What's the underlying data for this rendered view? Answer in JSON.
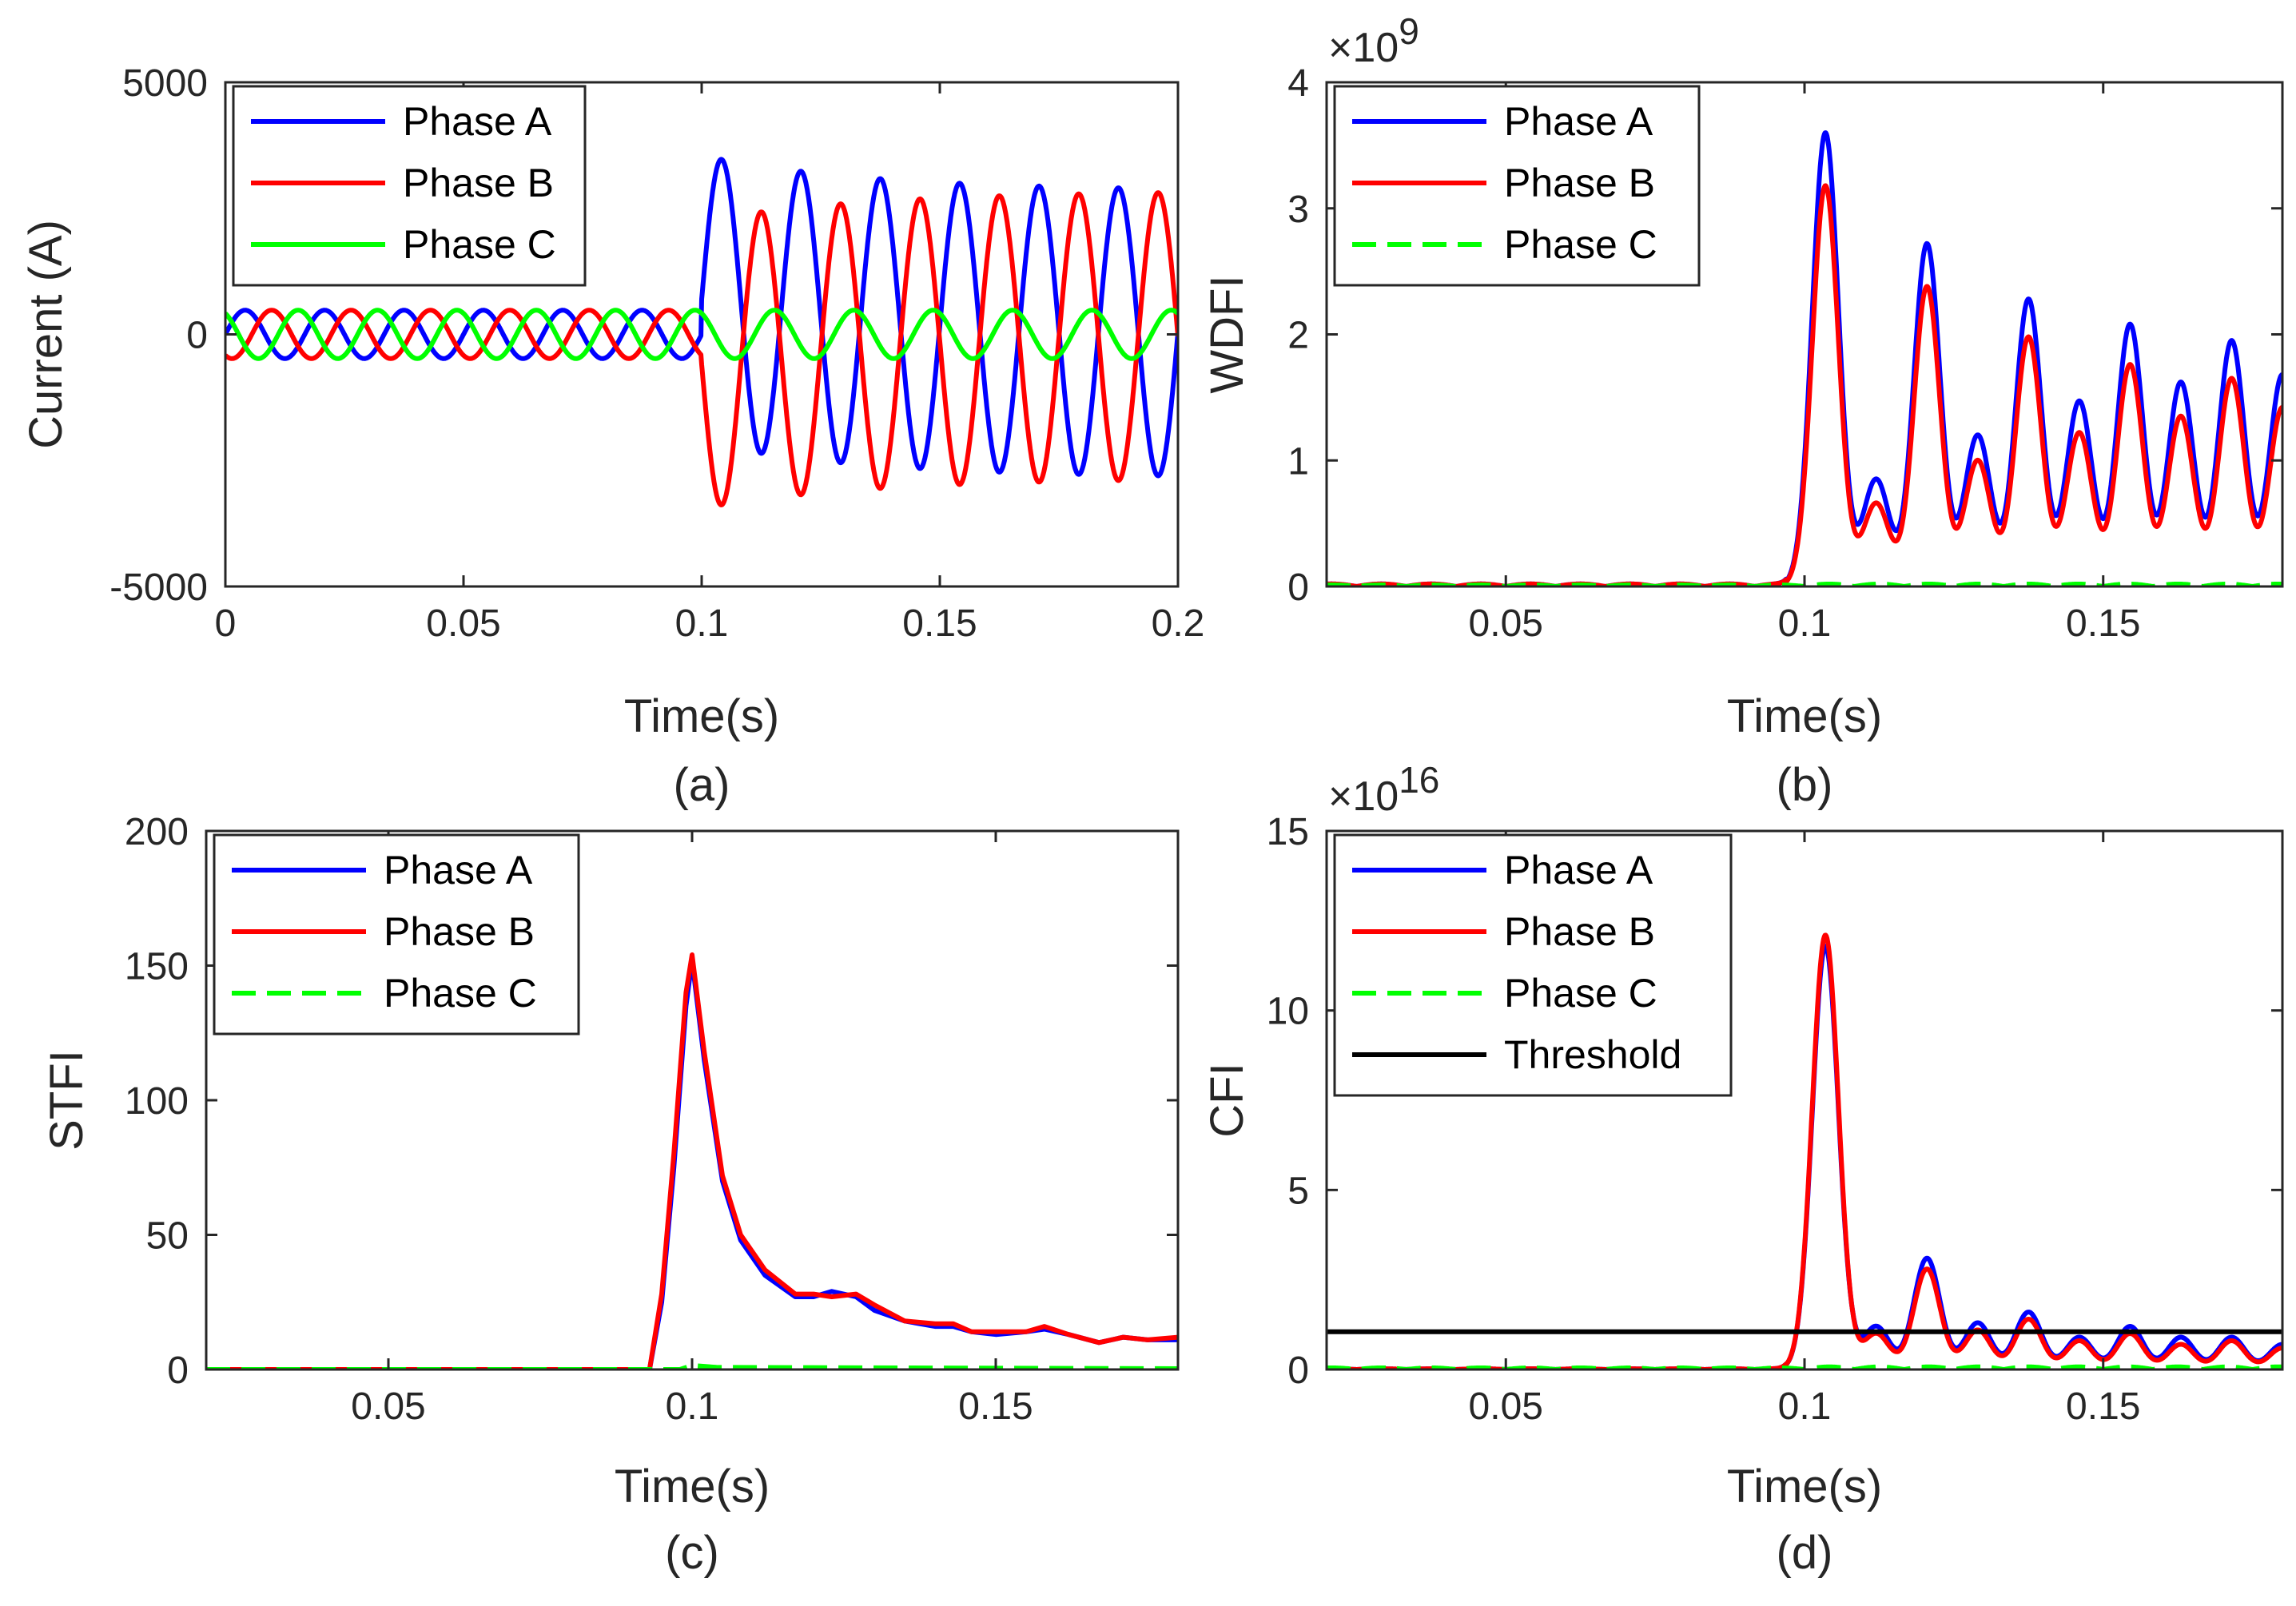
{
  "chart_data": [
    {
      "panel": "(a)",
      "type": "line",
      "caption": "(a)",
      "xlabel": "Time(s)",
      "ylabel": "Current (A)",
      "exponent_label": "",
      "xlim": [
        0,
        0.2
      ],
      "ylim": [
        -5000,
        5000
      ],
      "xticks": [
        0,
        0.05,
        0.1,
        0.15,
        0.2
      ],
      "xtick_labels": [
        "0",
        "0.05",
        "0.1",
        "0.15",
        "0.2"
      ],
      "yticks": [
        -5000,
        0,
        5000
      ],
      "ytick_labels": [
        "-5000",
        "0",
        "5000"
      ],
      "legend_position": "top-left",
      "series": [
        {
          "name": "Phase A",
          "color": "#0000ff",
          "dash": "solid",
          "pre_fault_amplitude": 480,
          "fault_time": 0.1,
          "fault_peak": 4050,
          "fault_steady_amplitude": 2850,
          "fault_offset_start": 700,
          "frequency_hz": 60
        },
        {
          "name": "Phase B",
          "color": "#ff0000",
          "dash": "solid",
          "pre_fault_amplitude": 480,
          "fault_time": 0.1,
          "fault_peak": -3800,
          "fault_steady_amplitude": 2850,
          "fault_offset_start": -600,
          "frequency_hz": 60
        },
        {
          "name": "Phase C",
          "color": "#00ff00",
          "dash": "solid",
          "pre_fault_amplitude": 480,
          "fault_time": 0.1,
          "fault_steady_amplitude": 480,
          "frequency_hz": 60
        }
      ]
    },
    {
      "panel": "(b)",
      "type": "line",
      "caption": "(b)",
      "xlabel": "Time(s)",
      "ylabel": "WDFI",
      "exponent_label": "×10",
      "exponent_power": "9",
      "xlim": [
        0.02,
        0.18
      ],
      "ylim": [
        0,
        4
      ],
      "xticks": [
        0.05,
        0.1,
        0.15
      ],
      "xtick_labels": [
        "0.05",
        "0.1",
        "0.15"
      ],
      "yticks": [
        0,
        1,
        2,
        3,
        4
      ],
      "ytick_labels": [
        "0",
        "1",
        "2",
        "3",
        "4"
      ],
      "legend_position": "top-left",
      "peak_times": [
        0.1035,
        0.112,
        0.1205,
        0.129,
        0.1375,
        0.146,
        0.1545,
        0.163,
        0.1715,
        0.18
      ],
      "series": [
        {
          "name": "Phase A",
          "color": "#0000ff",
          "dash": "solid",
          "peaks": [
            3.6,
            0.85,
            2.72,
            1.2,
            2.28,
            1.47,
            2.08,
            1.62,
            1.95,
            1.68
          ]
        },
        {
          "name": "Phase B",
          "color": "#ff0000",
          "dash": "solid",
          "peaks": [
            3.18,
            0.66,
            2.38,
            1.0,
            1.98,
            1.22,
            1.76,
            1.35,
            1.65,
            1.42
          ]
        },
        {
          "name": "Phase C",
          "color": "#00ff00",
          "dash": "dashed",
          "peaks": []
        }
      ]
    },
    {
      "panel": "(c)",
      "type": "line",
      "caption": "(c)",
      "xlabel": "Time(s)",
      "ylabel": "STFI",
      "exponent_label": "",
      "xlim": [
        0.02,
        0.18
      ],
      "ylim": [
        0,
        200
      ],
      "xticks": [
        0.05,
        0.1,
        0.15
      ],
      "xtick_labels": [
        "0.05",
        "0.1",
        "0.15"
      ],
      "yticks": [
        0,
        50,
        100,
        150,
        200
      ],
      "ytick_labels": [
        "0",
        "50",
        "100",
        "150",
        "200"
      ],
      "legend_position": "top-left",
      "series": [
        {
          "name": "Phase A",
          "color": "#0000ff",
          "dash": "solid",
          "x": [
            0.02,
            0.093,
            0.095,
            0.097,
            0.099,
            0.1,
            0.102,
            0.105,
            0.108,
            0.112,
            0.117,
            0.12,
            0.123,
            0.127,
            0.13,
            0.135,
            0.14,
            0.143,
            0.146,
            0.15,
            0.155,
            0.158,
            0.162,
            0.167,
            0.171,
            0.175,
            0.18
          ],
          "y": [
            0,
            0,
            25,
            75,
            135,
            152,
            115,
            70,
            48,
            35,
            27,
            27,
            29,
            27,
            22,
            18,
            16,
            16,
            14,
            13,
            14,
            15,
            13,
            10,
            12,
            11,
            11
          ]
        },
        {
          "name": "Phase B",
          "color": "#ff0000",
          "dash": "solid",
          "x": [
            0.02,
            0.093,
            0.095,
            0.097,
            0.099,
            0.1,
            0.102,
            0.105,
            0.108,
            0.112,
            0.117,
            0.12,
            0.123,
            0.127,
            0.13,
            0.135,
            0.14,
            0.143,
            0.146,
            0.15,
            0.155,
            0.158,
            0.162,
            0.167,
            0.171,
            0.175,
            0.18
          ],
          "y": [
            0,
            0,
            28,
            80,
            140,
            154,
            118,
            72,
            50,
            37,
            28,
            28,
            27,
            28,
            24,
            18,
            17,
            17,
            14,
            14,
            14,
            16,
            13,
            10,
            12,
            11,
            12
          ]
        },
        {
          "name": "Phase C",
          "color": "#00ff00",
          "dash": "dashed",
          "x": [
            0.02,
            0.098,
            0.1,
            0.104,
            0.18
          ],
          "y": [
            0,
            0,
            1.5,
            0.8,
            0.3
          ]
        }
      ]
    },
    {
      "panel": "(d)",
      "type": "line",
      "caption": "(d)",
      "xlabel": "Time(s)",
      "ylabel": "CFI",
      "exponent_label": "×10",
      "exponent_power": "16",
      "xlim": [
        0.02,
        0.18
      ],
      "ylim": [
        0,
        15
      ],
      "xticks": [
        0.05,
        0.1,
        0.15
      ],
      "xtick_labels": [
        "0.05",
        "0.1",
        "0.15"
      ],
      "yticks": [
        0,
        5,
        10,
        15
      ],
      "ytick_labels": [
        "0",
        "5",
        "10",
        "15"
      ],
      "legend_position": "top-left",
      "peak_times": [
        0.1035,
        0.112,
        0.1205,
        0.129,
        0.1375,
        0.146,
        0.1545,
        0.163,
        0.1715,
        0.18
      ],
      "series": [
        {
          "name": "Phase A",
          "color": "#0000ff",
          "dash": "solid",
          "peaks": [
            11.8,
            1.2,
            3.1,
            1.3,
            1.6,
            0.9,
            1.2,
            0.9,
            0.9,
            0.7
          ]
        },
        {
          "name": "Phase B",
          "color": "#ff0000",
          "dash": "solid",
          "peaks": [
            12.1,
            1.0,
            2.8,
            1.1,
            1.4,
            0.8,
            1.0,
            0.7,
            0.8,
            0.6
          ]
        },
        {
          "name": "Phase C",
          "color": "#00ff00",
          "dash": "dashed",
          "peaks": []
        },
        {
          "name": "Threshold",
          "color": "#000000",
          "dash": "solid",
          "constant": 1.05
        }
      ]
    }
  ]
}
